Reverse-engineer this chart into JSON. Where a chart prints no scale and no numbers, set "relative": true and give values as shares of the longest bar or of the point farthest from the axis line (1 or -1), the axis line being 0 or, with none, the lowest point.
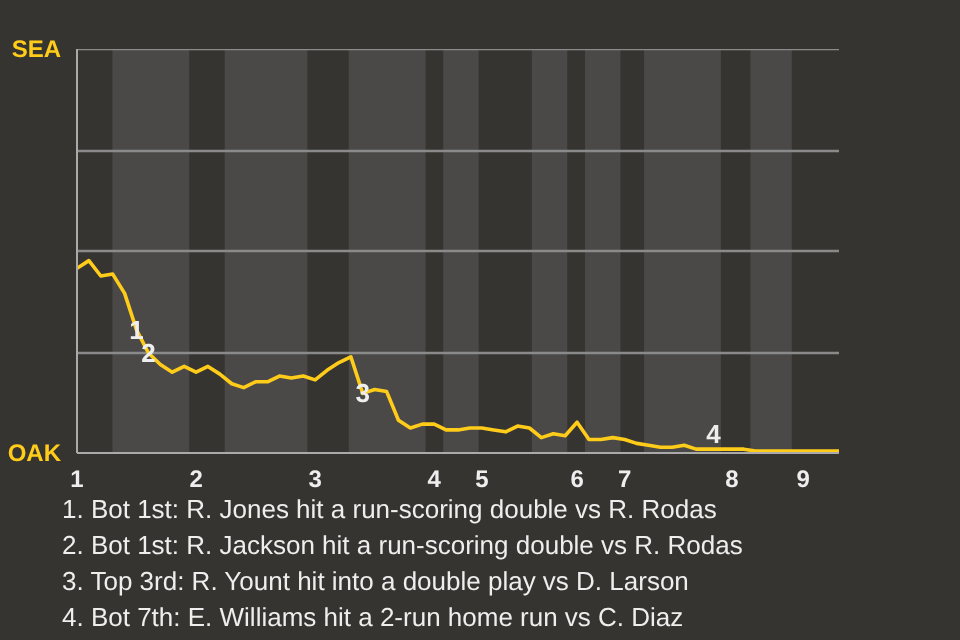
{
  "chart_data": {
    "type": "line",
    "relative": true,
    "ref_lines": [
      {
        "axis": "y",
        "value": 0.52,
        "color": "#8a8a8a"
      },
      {
        "axis": "y",
        "value": 1.05,
        "color": "#8a8a8a"
      },
      {
        "axis": "y",
        "value": 1.57,
        "color": "#8a8a8a"
      },
      {
        "axis": "y",
        "value": 2.1,
        "color": "#8a8a8a"
      }
    ],
    "categories": [
      "1",
      null,
      null,
      null,
      null,
      null,
      null,
      null,
      null,
      null,
      "2",
      null,
      null,
      null,
      null,
      null,
      null,
      null,
      null,
      null,
      "3",
      null,
      null,
      null,
      null,
      null,
      null,
      null,
      null,
      null,
      "4",
      null,
      null,
      null,
      "5",
      null,
      null,
      null,
      null,
      null,
      null,
      null,
      "6",
      null,
      null,
      null,
      "7",
      null,
      null,
      null,
      null,
      null,
      null,
      null,
      null,
      "8",
      null,
      null,
      null,
      null,
      null,
      "9",
      null,
      null,
      null
    ],
    "series": [
      {
        "color": "#ffcc1a",
        "values": [
          0.96,
          1,
          0.92,
          0.93,
          0.83,
          0.64,
          0.52,
          0.46,
          0.42,
          0.45,
          0.42,
          0.45,
          0.41,
          0.36,
          0.34,
          0.37,
          0.37,
          0.4,
          0.39,
          0.4,
          0.38,
          0.43,
          0.47,
          0.5,
          0.31,
          0.33,
          0.32,
          0.17,
          0.13,
          0.15,
          0.15,
          0.12,
          0.12,
          0.13,
          0.13,
          0.12,
          0.11,
          0.14,
          0.13,
          0.08,
          0.1,
          0.09,
          0.16,
          0.07,
          0.07,
          0.08,
          0.07,
          0.05,
          0.04,
          0.03,
          0.03,
          0.04,
          0.02,
          0.02,
          0.02,
          0.02,
          0.02,
          0.01,
          0.01,
          0.01,
          0.01,
          0.01,
          0.01,
          0.01,
          0.01
        ]
      }
    ],
    "annotations": [
      "SEA",
      "OAK",
      {
        "text": "1",
        "y": 0.64
      },
      {
        "text": "2",
        "y": 0.52
      },
      {
        "text": "3",
        "y": 0.31
      },
      {
        "text": "4",
        "y": 0.02
      },
      "1. Bot 1st: R. Jones hit a run-scoring double vs R. Rodas",
      "2. Bot 1st: R. Jackson hit a run-scoring double vs R. Rodas",
      "3. Top 3rd: R. Yount hit into a double play vs D. Larson",
      "4. Bot 7th: E. Williams hit a 2-run home run vs C. Diaz"
    ]
  }
}
